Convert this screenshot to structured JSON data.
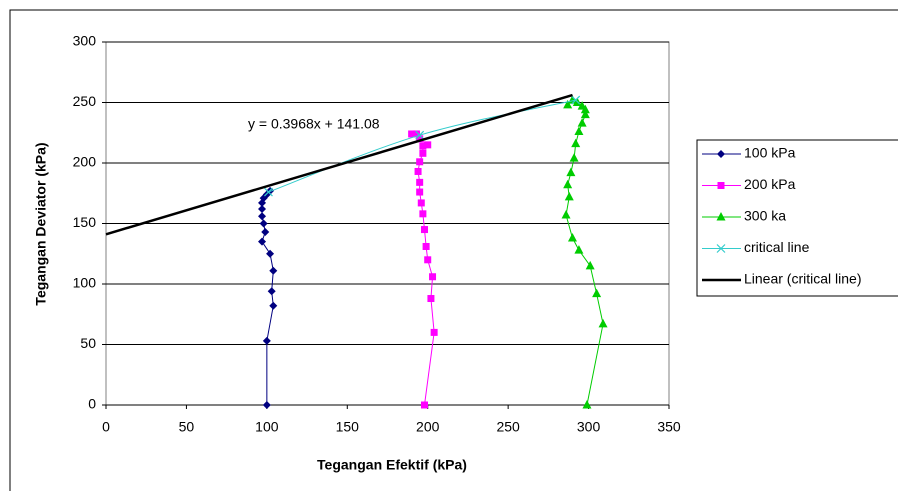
{
  "chart_data": {
    "type": "scatter",
    "x_label": "Tegangan Efektif (kPa)",
    "y_label": "Tegangan Deviator (kPa)",
    "xlim": [
      0,
      350
    ],
    "ylim": [
      0,
      300
    ],
    "xticks": [
      0,
      50,
      100,
      150,
      200,
      250,
      300,
      350
    ],
    "yticks": [
      0,
      50,
      100,
      150,
      200,
      250,
      300
    ],
    "grid": true,
    "legend": "right",
    "series": [
      {
        "name": "100 kPa",
        "color": "#000080",
        "marker": "diamond",
        "x": [
          100,
          100,
          104,
          103,
          104,
          102,
          97,
          99,
          98,
          97,
          97,
          97,
          98,
          100,
          102
        ],
        "values": [
          0,
          53,
          82,
          94,
          111,
          125,
          135,
          143,
          150,
          156,
          162,
          167,
          171,
          174,
          177
        ]
      },
      {
        "name": "200 kPa",
        "color": "#ff00ff",
        "marker": "square",
        "x": [
          198,
          204,
          202,
          203,
          200,
          199,
          198,
          197,
          196,
          195,
          195,
          194,
          195,
          197,
          197,
          200,
          195,
          193,
          190
        ],
        "values": [
          0,
          60,
          88,
          106,
          120,
          131,
          145,
          158,
          167,
          176,
          184,
          193,
          201,
          208,
          214,
          215,
          220,
          224,
          224
        ]
      },
      {
        "name": "300 ka",
        "color": "#00cc00",
        "marker": "triangle",
        "x": [
          299,
          309,
          305,
          301,
          294,
          290,
          286,
          288,
          287,
          289,
          291,
          292,
          294,
          296,
          298,
          298,
          296,
          293,
          290,
          287
        ],
        "values": [
          0,
          67,
          92,
          115,
          128,
          138,
          157,
          172,
          182,
          192,
          204,
          216,
          226,
          233,
          240,
          244,
          247,
          250,
          252,
          248
        ]
      },
      {
        "name": "critical line",
        "color": "#33cccc",
        "marker": "x",
        "smooth": true,
        "x": [
          101,
          195,
          292
        ],
        "values": [
          176,
          223,
          252
        ]
      }
    ],
    "trendline": {
      "name": "Linear (critical line)",
      "equation": "y = 0.3968x + 141.08",
      "slope": 0.3968,
      "intercept": 141.08,
      "xrange": [
        0,
        290
      ],
      "color": "#000000"
    }
  }
}
